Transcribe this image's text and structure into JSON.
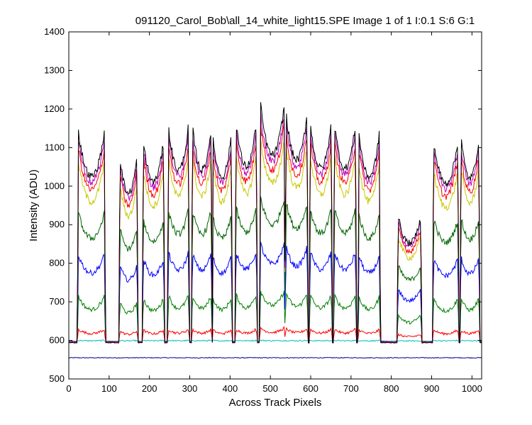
{
  "chart_data": {
    "type": "line",
    "title": "091120_Carol_Bob\\all_14_white_light15.SPE  Image 1 of 1  I:0.1  S:6  G:1",
    "xlabel": "Across Track Pixels",
    "ylabel": "Intensity (ADU)",
    "xlim": [
      0,
      1024
    ],
    "ylim": [
      500,
      1400
    ],
    "xticks": [
      0,
      100,
      200,
      300,
      400,
      500,
      600,
      700,
      800,
      900,
      1000
    ],
    "yticks": [
      500,
      600,
      700,
      800,
      900,
      1000,
      1100,
      1200,
      1300,
      1400
    ],
    "grid": false,
    "legend": "none",
    "fiber_centers": [
      56,
      148,
      210,
      272,
      330,
      380,
      440,
      505,
      565,
      625,
      685,
      745,
      845,
      935,
      995
    ],
    "fiber_widths": [
      70,
      48,
      56,
      55,
      52,
      52,
      56,
      64,
      58,
      58,
      58,
      56,
      62,
      66,
      50
    ],
    "fiber_profile_weights": [
      1.0,
      0.9,
      0.97,
      1.04,
      1.04,
      1.0,
      1.06,
      1.13,
      1.1,
      1.05,
      1.05,
      1.0,
      0.6,
      0.96,
      0.99
    ],
    "series": [
      {
        "color": "#00008b",
        "baseline": 555,
        "edge_level": 555,
        "center_level": 555
      },
      {
        "color": "#00bfbf",
        "baseline": 598,
        "edge_level": 600,
        "center_level": 599
      },
      {
        "color": "#ff0000",
        "baseline": 597,
        "edge_level": 630,
        "center_level": 618
      },
      {
        "color": "#008000",
        "baseline": 596,
        "edge_level": 720,
        "center_level": 680
      },
      {
        "color": "#0000ff",
        "baseline": 596,
        "edge_level": 830,
        "center_level": 775
      },
      {
        "color": "#006400",
        "baseline": 595,
        "edge_level": 940,
        "center_level": 865
      },
      {
        "color": "#c8c800",
        "baseline": 595,
        "edge_level": 1080,
        "center_level": 960
      },
      {
        "color": "#ff0000",
        "baseline": 595,
        "edge_level": 1115,
        "center_level": 990
      },
      {
        "color": "#bf00bf",
        "baseline": 595,
        "edge_level": 1140,
        "center_level": 1010
      },
      {
        "color": "#000000",
        "baseline": 594,
        "edge_level": 1160,
        "center_level": 1025
      }
    ],
    "colors": {
      "axes": "#000000",
      "background": "#ffffff"
    }
  }
}
